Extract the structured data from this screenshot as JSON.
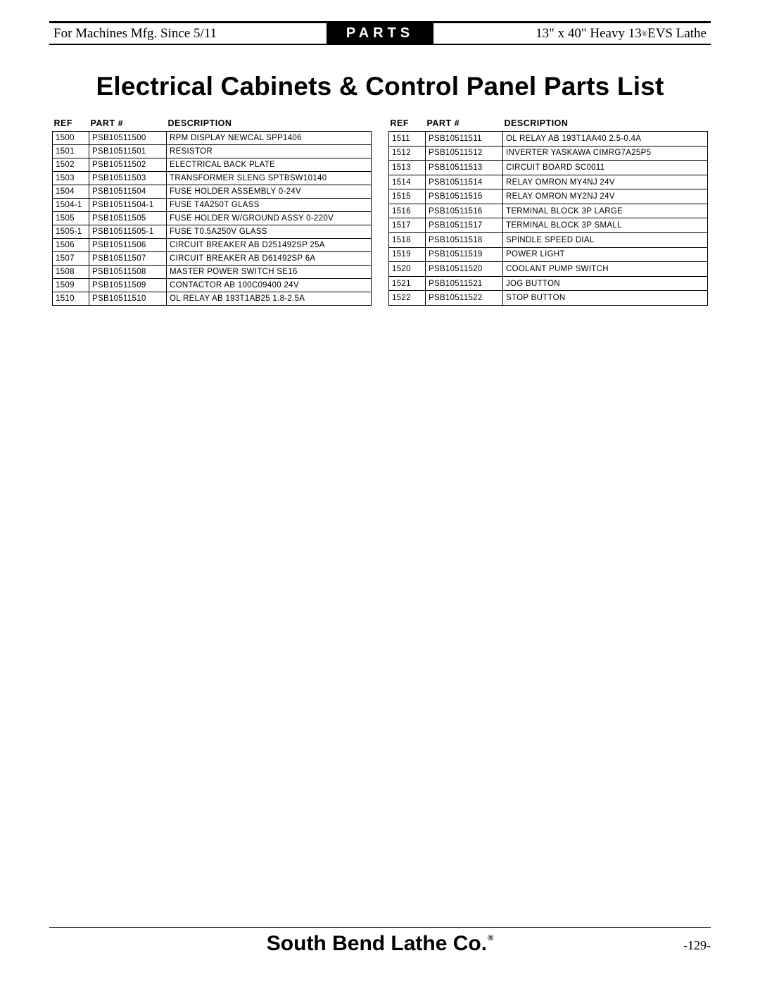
{
  "header": {
    "left": "For Machines Mfg. Since 5/11",
    "center": "PARTS",
    "right_prefix": "13\" x 40\" Heavy 13",
    "right_suffix": " EVS Lathe"
  },
  "title": "Electrical Cabinets & Control Panel Parts List",
  "columns": {
    "ref": "REF",
    "part": "PART #",
    "desc": "DESCRIPTION"
  },
  "table_left": [
    {
      "ref": "1500",
      "part": "PSB10511500",
      "desc": "RPM DISPLAY NEWCAL SPP1406"
    },
    {
      "ref": "1501",
      "part": "PSB10511501",
      "desc": "RESISTOR"
    },
    {
      "ref": "1502",
      "part": "PSB10511502",
      "desc": "ELECTRICAL BACK PLATE"
    },
    {
      "ref": "1503",
      "part": "PSB10511503",
      "desc": "TRANSFORMER SLENG SPTBSW10140"
    },
    {
      "ref": "1504",
      "part": "PSB10511504",
      "desc": "FUSE HOLDER ASSEMBLY 0-24V"
    },
    {
      "ref": "1504-1",
      "part": "PSB10511504-1",
      "desc": "FUSE T4A250T GLASS"
    },
    {
      "ref": "1505",
      "part": "PSB10511505",
      "desc": "FUSE HOLDER W/GROUND ASSY 0-220V"
    },
    {
      "ref": "1505-1",
      "part": "PSB10511505-1",
      "desc": "FUSE T0.5A250V GLASS"
    },
    {
      "ref": "1506",
      "part": "PSB10511506",
      "desc": "CIRCUIT BREAKER AB D251492SP 25A"
    },
    {
      "ref": "1507",
      "part": "PSB10511507",
      "desc": "CIRCUIT BREAKER AB D61492SP 6A"
    },
    {
      "ref": "1508",
      "part": "PSB10511508",
      "desc": "MASTER POWER SWITCH SE16"
    },
    {
      "ref": "1509",
      "part": "PSB10511509",
      "desc": "CONTACTOR AB 100C09400 24V"
    },
    {
      "ref": "1510",
      "part": "PSB10511510",
      "desc": "OL RELAY AB 193T1AB25 1.8-2.5A"
    }
  ],
  "table_right": [
    {
      "ref": "1511",
      "part": "PSB10511511",
      "desc": "OL RELAY AB 193T1AA40 2.5-0.4A"
    },
    {
      "ref": "1512",
      "part": "PSB10511512",
      "desc": "INVERTER YASKAWA CIMRG7A25P5"
    },
    {
      "ref": "1513",
      "part": "PSB10511513",
      "desc": "CIRCUIT BOARD SC0011"
    },
    {
      "ref": "1514",
      "part": "PSB10511514",
      "desc": "RELAY OMRON MY4NJ 24V"
    },
    {
      "ref": "1515",
      "part": "PSB10511515",
      "desc": "RELAY OMRON MY2NJ 24V"
    },
    {
      "ref": "1516",
      "part": "PSB10511516",
      "desc": "TERMINAL BLOCK 3P LARGE"
    },
    {
      "ref": "1517",
      "part": "PSB10511517",
      "desc": "TERMINAL BLOCK 3P SMALL"
    },
    {
      "ref": "1518",
      "part": "PSB10511518",
      "desc": "SPINDLE SPEED DIAL"
    },
    {
      "ref": "1519",
      "part": "PSB10511519",
      "desc": "POWER LIGHT"
    },
    {
      "ref": "1520",
      "part": "PSB10511520",
      "desc": "COOLANT PUMP SWITCH"
    },
    {
      "ref": "1521",
      "part": "PSB10511521",
      "desc": "JOG BUTTON"
    },
    {
      "ref": "1522",
      "part": "PSB10511522",
      "desc": "STOP BUTTON"
    }
  ],
  "footer": {
    "brand": "South Bend Lathe Co.",
    "page": "-129-"
  }
}
